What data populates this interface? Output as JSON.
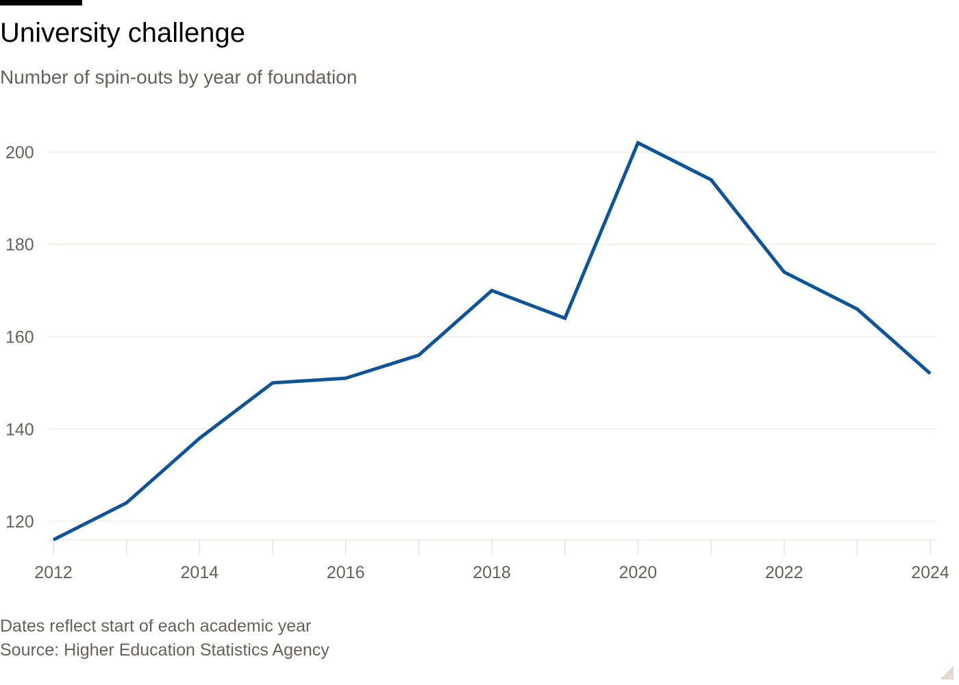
{
  "header": {
    "title": "University challenge",
    "subtitle": "Number of spin-outs by year of foundation"
  },
  "footer": {
    "note": "Dates reflect start of each academic year",
    "source": "Source: Higher Education Statistics Agency"
  },
  "colors": {
    "line": "#0f5499",
    "grid": "#f0ebe7",
    "text_muted": "#66605c",
    "tick": "#e6e0da",
    "background": "#ffffff"
  },
  "chart_data": {
    "type": "line",
    "title": "University challenge",
    "subtitle": "Number of spin-outs by year of foundation",
    "xlabel": "",
    "ylabel": "",
    "x": [
      2012,
      2013,
      2014,
      2015,
      2016,
      2017,
      2018,
      2019,
      2020,
      2021,
      2022,
      2023,
      2024
    ],
    "series": [
      {
        "values": [
          116,
          124,
          138,
          150,
          151,
          156,
          170,
          164,
          202,
          194,
          174,
          166,
          152
        ]
      }
    ],
    "xlim": [
      2012,
      2024
    ],
    "ylim": [
      116,
      204
    ],
    "x_tick_labels": [
      "2012",
      "2014",
      "2016",
      "2018",
      "2020",
      "2022",
      "2024"
    ],
    "y_ticks": [
      120,
      140,
      160,
      180,
      200
    ],
    "grid": true,
    "legend": "none"
  }
}
